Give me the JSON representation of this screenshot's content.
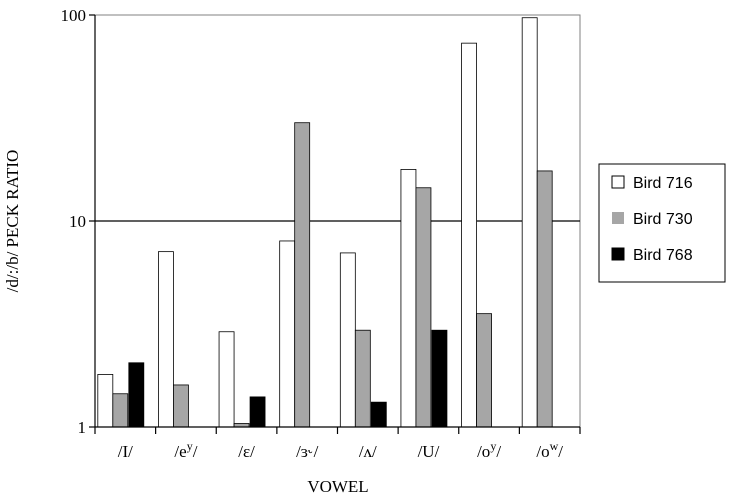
{
  "chart_data": {
    "type": "bar",
    "yscale": "log",
    "ylim": [
      1,
      100
    ],
    "yticks": [
      "1",
      "10",
      "100"
    ],
    "ylabel": "/d/:/b/ PECK RATIO",
    "xlabel": "VOWEL",
    "grid": "major horizontal lines at 10",
    "legend_position": "right",
    "categories": [
      {
        "base": "/I/"
      },
      {
        "base": "/e",
        "sup": "y",
        "tail": "/"
      },
      {
        "base": "/ɛ/"
      },
      {
        "base": "/ɜ˞/"
      },
      {
        "base": "/ʌ/"
      },
      {
        "base": "/U/"
      },
      {
        "base": "/o",
        "sup": "y",
        "tail": "/"
      },
      {
        "base": "/o",
        "sup": "w",
        "tail": "/"
      }
    ],
    "series": [
      {
        "name": "Bird 716",
        "color": "#ffffff",
        "values": [
          1.8,
          7.1,
          2.9,
          8.0,
          7.0,
          17.8,
          73,
          97
        ]
      },
      {
        "name": "Bird 730",
        "color": "#a6a6a6",
        "values": [
          1.45,
          1.6,
          1.04,
          30,
          2.95,
          14.5,
          3.55,
          17.5
        ]
      },
      {
        "name": "Bird 768",
        "color": "#000000",
        "values": [
          2.05,
          null,
          1.4,
          null,
          1.32,
          2.95,
          null,
          null
        ]
      }
    ]
  }
}
